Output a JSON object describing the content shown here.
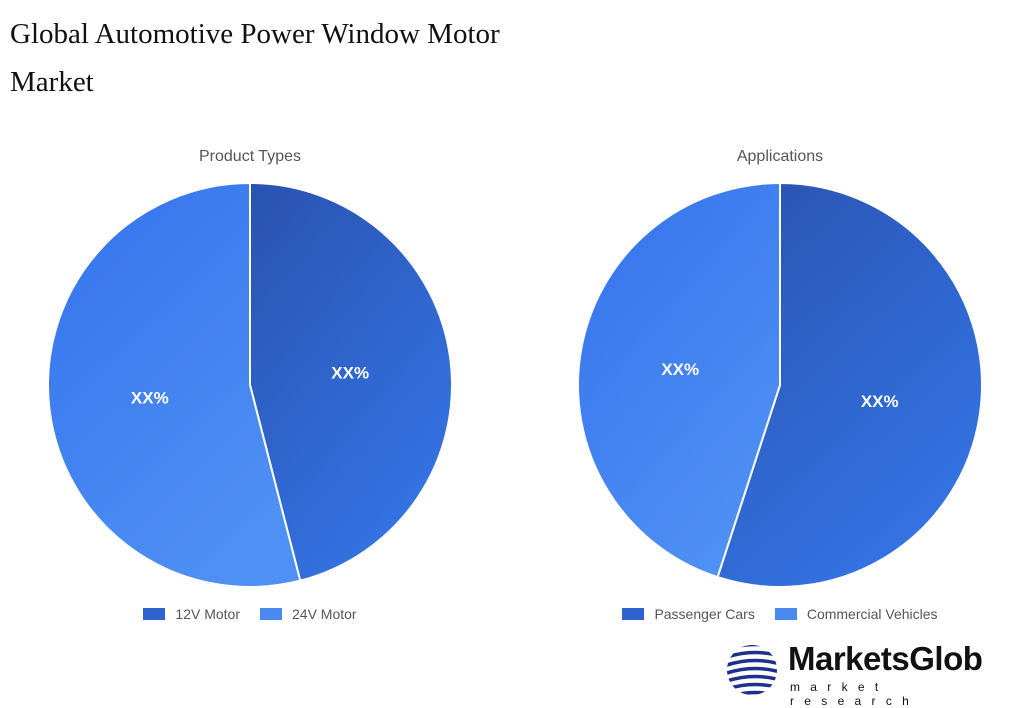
{
  "title": "Global Automotive Power Window Motor Market",
  "chart_data": [
    {
      "type": "pie",
      "title": "Product Types",
      "categories": [
        "12V Motor",
        "24V Motor"
      ],
      "values": [
        46,
        54
      ],
      "data_labels": [
        "XX%",
        "XX%"
      ],
      "colors": [
        "#2f62cc",
        "#4a8af0"
      ],
      "legend": "bottom"
    },
    {
      "type": "pie",
      "title": "Applications",
      "categories": [
        "Passenger Cars",
        "Commercial Vehicles"
      ],
      "values": [
        55,
        45
      ],
      "data_labels": [
        "XX%",
        "XX%"
      ],
      "colors": [
        "#2f62cc",
        "#4a8af0"
      ],
      "legend": "bottom"
    }
  ],
  "logo": {
    "name": "MarketsGlob",
    "tagline": "market research"
  }
}
